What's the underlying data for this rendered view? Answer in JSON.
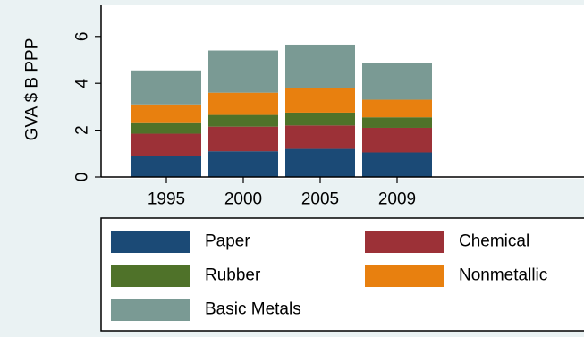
{
  "chart_data": {
    "type": "bar",
    "stacked": true,
    "title": "",
    "xlabel": "",
    "ylabel": "GVA  $ B PPP",
    "ylim": [
      0,
      7
    ],
    "y_ticks": [
      0,
      2,
      4,
      6
    ],
    "categories": [
      "1995",
      "2000",
      "2005",
      "2009"
    ],
    "grid": false,
    "legend_position": "bottom",
    "series": [
      {
        "name": "Paper",
        "color": "#1b4a76",
        "values": [
          0.9,
          1.1,
          1.2,
          1.05
        ]
      },
      {
        "name": "Chemical",
        "color": "#9c3137",
        "values": [
          0.95,
          1.05,
          1.0,
          1.05
        ]
      },
      {
        "name": "Rubber",
        "color": "#4f7229",
        "values": [
          0.45,
          0.5,
          0.55,
          0.45
        ]
      },
      {
        "name": "Nonmetallic",
        "color": "#e8800f",
        "values": [
          0.8,
          0.95,
          1.05,
          0.75
        ]
      },
      {
        "name": "Basic Metals",
        "color": "#7a9a94",
        "values": [
          1.45,
          1.8,
          1.85,
          1.55
        ]
      }
    ]
  }
}
